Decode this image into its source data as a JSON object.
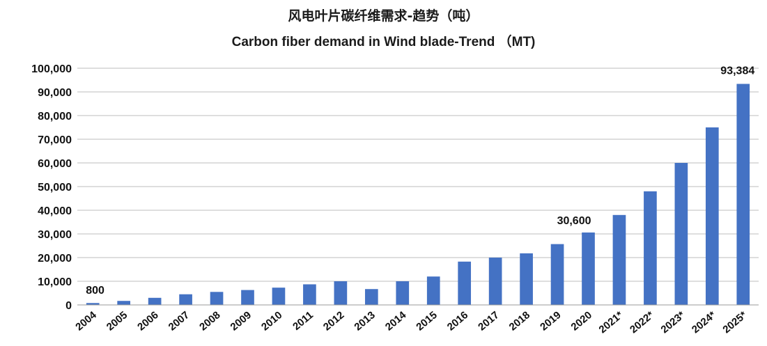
{
  "chart_data": {
    "type": "bar",
    "title": "风电叶片碳纤维需求-趋势（吨）",
    "subtitle": "Carbon fiber demand in Wind blade-Trend （MT)",
    "xlabel": "",
    "ylabel": "",
    "ylim": [
      0,
      100000
    ],
    "yticks": [
      0,
      10000,
      20000,
      30000,
      40000,
      50000,
      60000,
      70000,
      80000,
      90000,
      100000
    ],
    "ytick_labels": [
      "0",
      "10,000",
      "20,000",
      "30,000",
      "40,000",
      "50,000",
      "60,000",
      "70,000",
      "80,000",
      "90,000",
      "100,000"
    ],
    "grid": true,
    "legend": "none",
    "bar_color": "#4472C4",
    "categories": [
      "2004",
      "2005",
      "2006",
      "2007",
      "2008",
      "2009",
      "2010",
      "2011",
      "2012",
      "2013",
      "2014",
      "2015",
      "2016",
      "2017",
      "2018",
      "2019",
      "2020",
      "2021*",
      "2022*",
      "2023*",
      "2024*",
      "2025*"
    ],
    "values": [
      800,
      1700,
      3000,
      4500,
      5500,
      6300,
      7300,
      8700,
      10000,
      6700,
      10000,
      12000,
      18300,
      20000,
      21800,
      25700,
      30600,
      38000,
      48000,
      60000,
      75000,
      93384
    ],
    "data_labels": [
      {
        "category": "2004",
        "text": "800"
      },
      {
        "category": "2020",
        "text": "30,600"
      },
      {
        "category": "2025*",
        "text": "93,384"
      }
    ]
  }
}
